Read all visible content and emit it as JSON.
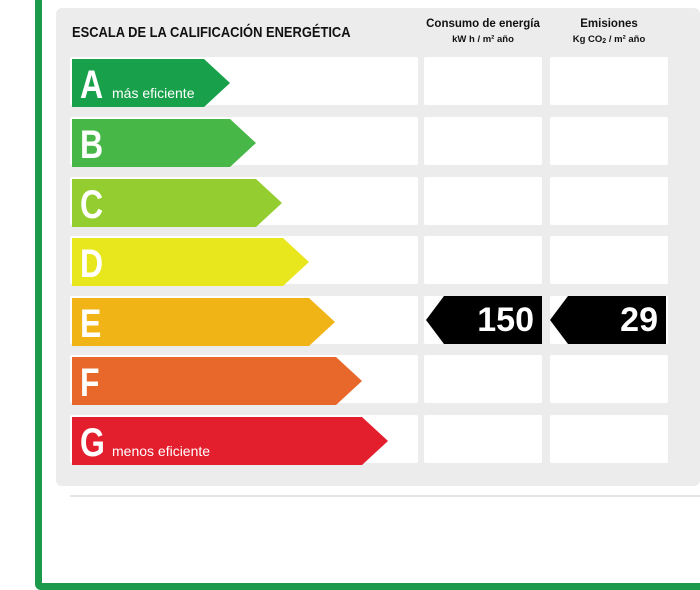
{
  "title": "ESCALA DE LA CALIFICACIÓN ENERGÉTICA",
  "columns": {
    "consumo": {
      "line1": "Consumo de energía",
      "line2": "kW h / m² año"
    },
    "emisiones": {
      "line1": "Emisiones",
      "line2_prefix": "Kg CO",
      "line2_sub": "2",
      "line2_suffix": " / m² año"
    }
  },
  "ratings": [
    {
      "letter": "A",
      "sublabel": "más eficiente",
      "color": "#18a04a"
    },
    {
      "letter": "B",
      "sublabel": "",
      "color": "#47b747"
    },
    {
      "letter": "C",
      "sublabel": "",
      "color": "#94cd2f"
    },
    {
      "letter": "D",
      "sublabel": "",
      "color": "#e8e61c"
    },
    {
      "letter": "E",
      "sublabel": "",
      "color": "#f1b416"
    },
    {
      "letter": "F",
      "sublabel": "",
      "color": "#e7682a"
    },
    {
      "letter": "G",
      "sublabel": "menos eficiente",
      "color": "#e31e2d"
    }
  ],
  "current": {
    "rating": "E",
    "consumo": "150",
    "emisiones": "29"
  }
}
